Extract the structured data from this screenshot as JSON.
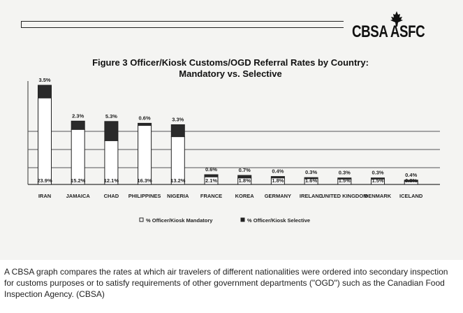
{
  "logo": {
    "text": "CBSA ASFC"
  },
  "caption": "A CBSA graph compares the rates at which air travelers of different nationalities were ordered into secondary inspection for customs purposes or to satisfy requirements of other government departments (\"OGD\") such as the Canadian Food Inspection Agency. (CBSA)",
  "chart_data": {
    "type": "bar",
    "stacked": true,
    "title": "Figure 3  Officer/Kiosk Customs/OGD Referral Rates by Country:",
    "subtitle": "Mandatory vs. Selective",
    "categories": [
      "IRAN",
      "JAMAICA",
      "CHAD",
      "PHILIPPINES",
      "NIGERIA",
      "FRANCE",
      "KOREA",
      "GERMANY",
      "IRELAND",
      "UNITED KINGDOM",
      "DENMARK",
      "ICELAND"
    ],
    "series": [
      {
        "name": "% Officer/Kiosk Mandatory",
        "values": [
          23.9,
          15.2,
          12.1,
          16.3,
          13.2,
          2.1,
          1.8,
          1.8,
          1.6,
          1.5,
          1.5,
          0.8
        ],
        "labels": [
          "23.9%",
          "15.2%",
          "12.1%",
          "16.3%",
          "13.2%",
          "2.1%",
          "1.8%",
          "1.8%",
          "1.6%",
          "1.5%",
          "1.5%",
          "0.8%"
        ],
        "color": "#ffffff"
      },
      {
        "name": "% Officer/Kiosk Selective",
        "values": [
          3.5,
          2.3,
          5.3,
          0.6,
          3.3,
          0.6,
          0.7,
          0.4,
          0.3,
          0.3,
          0.3,
          0.4
        ],
        "labels": [
          "3.5%",
          "2.3%",
          "5.3%",
          "0.6%",
          "3.3%",
          "0.6%",
          "0.7%",
          "0.4%",
          "0.3%",
          "0.3%",
          "0.3%",
          "0.4%"
        ],
        "color": "#2a2a2a"
      }
    ],
    "category_labels": [
      "IRAN",
      "JAMAICA",
      "CHAD",
      "PHILIPPINES",
      "NIGERIA",
      "FRANCE",
      "KOREA",
      "GERMANY",
      "IRELAND",
      "UNITED KINGDOM",
      "DENMARK",
      "ICELAND"
    ],
    "legend": {
      "position": "bottom",
      "entries": [
        "% Officer/Kiosk Mandatory",
        "% Officer/Kiosk Selective"
      ]
    },
    "grid": true,
    "ylim": [
      0,
      28
    ]
  }
}
